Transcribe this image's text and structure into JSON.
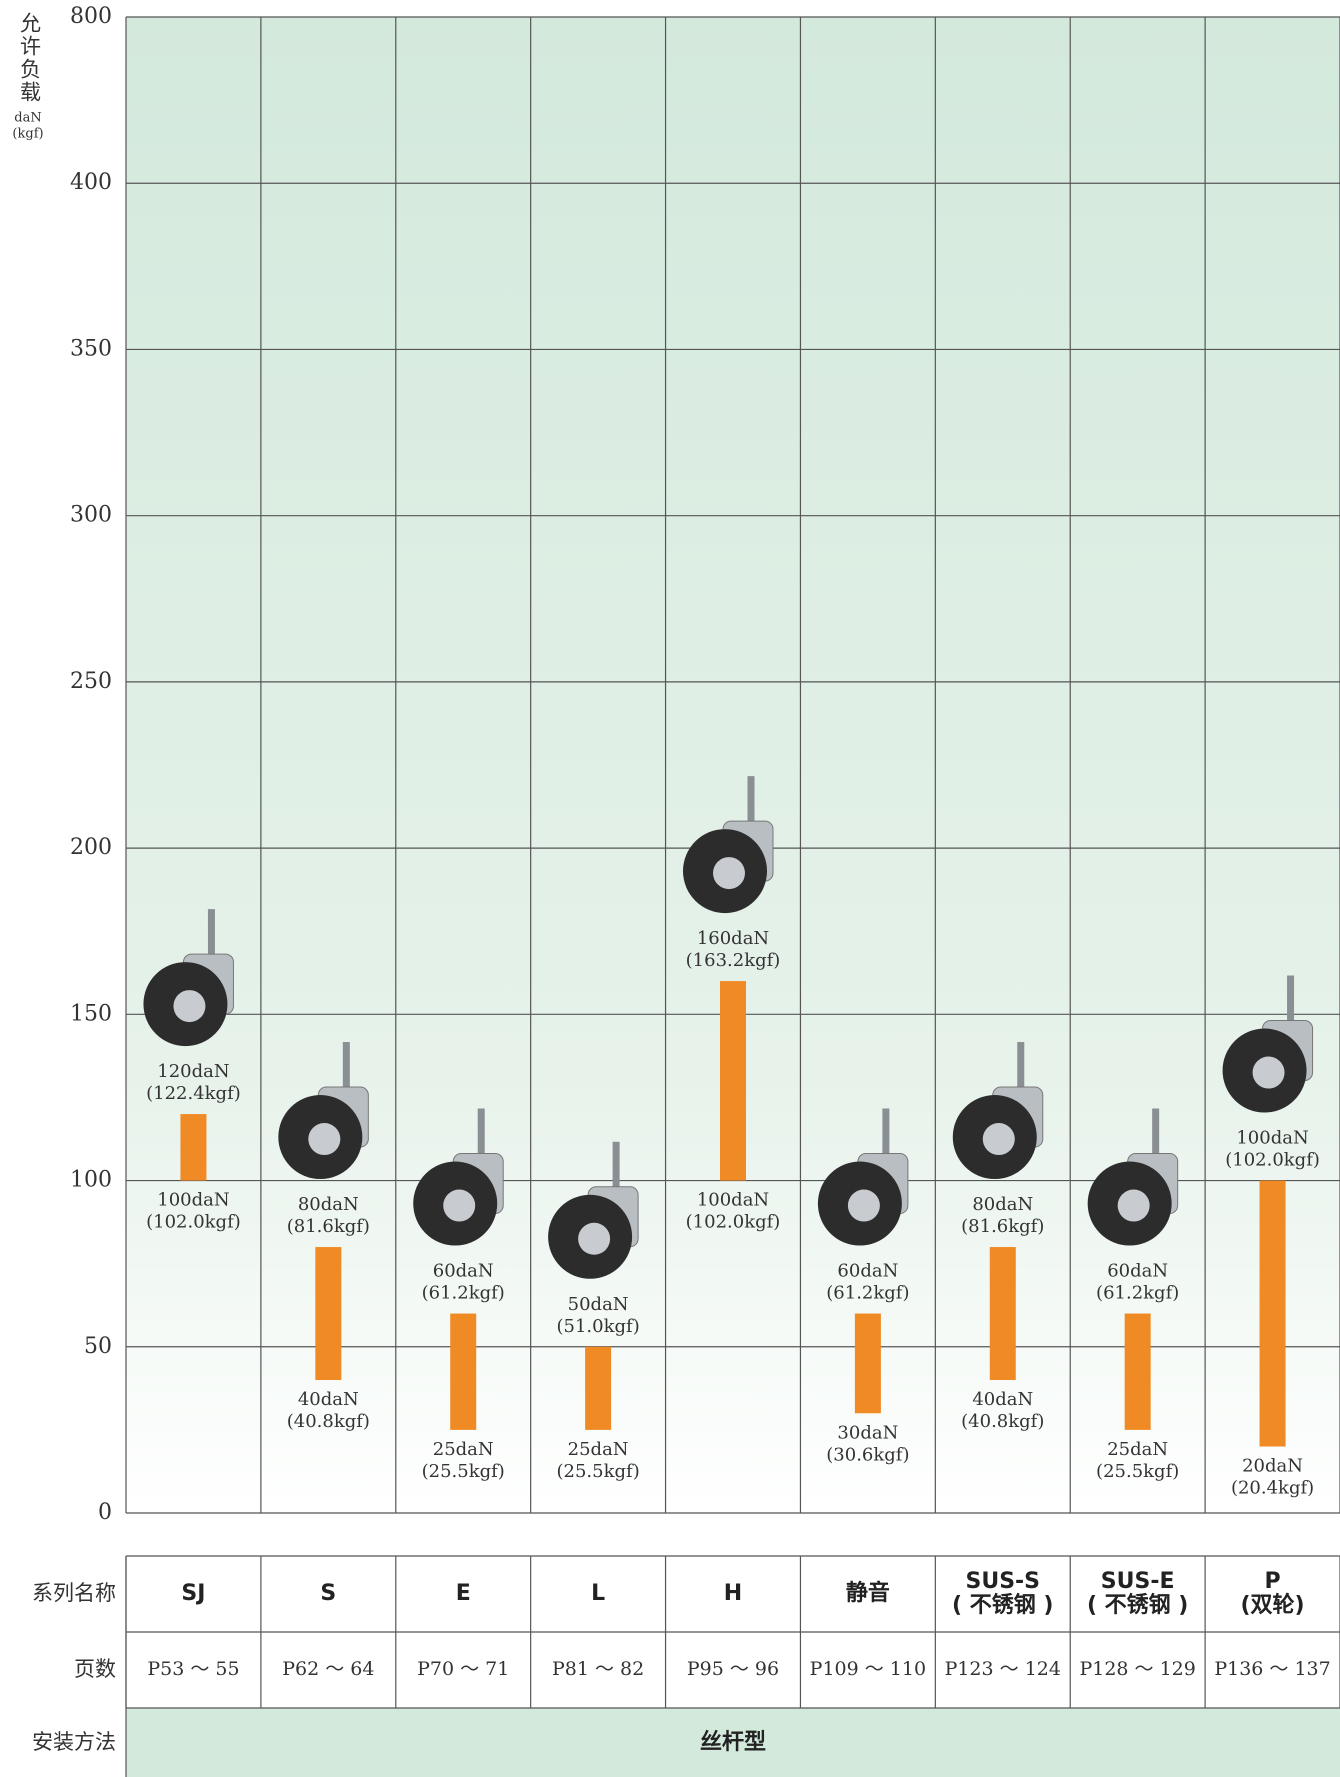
{
  "chart_data": {
    "type": "range-bar",
    "y_label": "允许负载",
    "y_unit": "daN",
    "y_unit_alt": "(kgf)",
    "categories": [
      [
        "SJ"
      ],
      [
        "S"
      ],
      [
        "E"
      ],
      [
        "L"
      ],
      [
        "H"
      ],
      [
        "静音"
      ],
      [
        "SUS-S",
        "( 不锈钢 )"
      ],
      [
        "SUS-E",
        "( 不锈钢 )"
      ],
      [
        "P",
        "(双轮)"
      ]
    ],
    "pages": [
      "P53 ～ 55",
      "P62 ～ 64",
      "P70 ～ 71",
      "P81 ～ 82",
      "P95 ～ 96",
      "P109 ～ 110",
      "P123 ～ 124",
      "P128 ～ 129",
      "P136 ～ 137"
    ],
    "row_labels": [
      "系列名称",
      "页数",
      "安装方法"
    ],
    "mounting": "丝杆型",
    "color": "#f08a24",
    "highs": [
      120,
      80,
      60,
      50,
      160,
      60,
      80,
      60,
      100
    ],
    "high_labels": [
      [
        "120daN",
        "(122.4kgf)"
      ],
      [
        "80daN",
        "(81.6kgf)"
      ],
      [
        "60daN",
        "(61.2kgf)"
      ],
      [
        "50daN",
        "(51.0kgf)"
      ],
      [
        "160daN",
        "(163.2kgf)"
      ],
      [
        "60daN",
        "(61.2kgf)"
      ],
      [
        "80daN",
        "(81.6kgf)"
      ],
      [
        "60daN",
        "(61.2kgf)"
      ],
      [
        "100daN",
        "(102.0kgf)"
      ]
    ],
    "lows": [
      100,
      40,
      25,
      25,
      100,
      30,
      40,
      25,
      20
    ],
    "low_labels": [
      [
        "100daN",
        "(102.0kgf)"
      ],
      [
        "40daN",
        "(40.8kgf)"
      ],
      [
        "25daN",
        "(25.5kgf)"
      ],
      [
        "25daN",
        "(25.5kgf)"
      ],
      [
        "100daN",
        "(102.0kgf)"
      ],
      [
        "30daN",
        "(30.6kgf)"
      ],
      [
        "40daN",
        "(40.8kgf)"
      ],
      [
        "25daN",
        "(25.5kgf)"
      ],
      [
        "20daN",
        "(20.4kgf)"
      ]
    ],
    "ylim": [
      0,
      800
    ],
    "yticks": [
      0,
      50,
      100,
      150,
      200,
      250,
      300,
      350,
      400,
      800
    ],
    "grid": true
  }
}
